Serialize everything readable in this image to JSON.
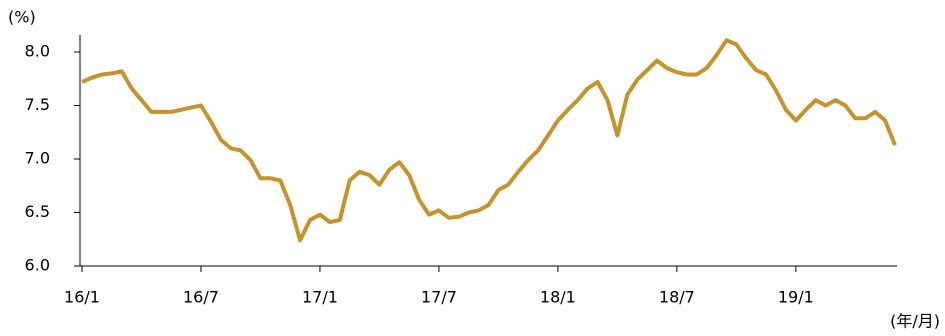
{
  "chart_data": {
    "type": "line",
    "y_axis_label": "(%)",
    "x_axis_label": "(年/月)",
    "categories": [
      "16/1",
      null,
      null,
      null,
      null,
      null,
      null,
      null,
      null,
      null,
      null,
      null,
      "16/7",
      null,
      null,
      null,
      null,
      null,
      null,
      null,
      null,
      null,
      null,
      null,
      "17/1",
      null,
      null,
      null,
      null,
      null,
      null,
      null,
      null,
      null,
      null,
      null,
      "17/7",
      null,
      null,
      null,
      null,
      null,
      null,
      null,
      null,
      null,
      null,
      null,
      "18/1",
      null,
      null,
      null,
      null,
      null,
      null,
      null,
      null,
      null,
      null,
      null,
      "18/7",
      null,
      null,
      null,
      null,
      null,
      null,
      null,
      null,
      null,
      null,
      null,
      "19/1",
      null,
      null,
      null,
      null,
      null,
      null,
      null,
      null,
      null,
      null
    ],
    "series": [
      {
        "color": "#c8922a",
        "values": [
          7.72,
          7.76,
          7.79,
          7.8,
          7.82,
          7.66,
          7.55,
          7.44,
          7.44,
          7.44,
          7.46,
          7.48,
          7.5,
          7.35,
          7.18,
          7.1,
          7.08,
          6.99,
          6.82,
          6.82,
          6.8,
          6.57,
          6.24,
          6.43,
          6.48,
          6.41,
          6.43,
          6.8,
          6.88,
          6.85,
          6.76,
          6.9,
          6.97,
          6.85,
          6.62,
          6.48,
          6.52,
          6.45,
          6.46,
          6.5,
          6.52,
          6.57,
          6.71,
          6.76,
          6.88,
          6.99,
          7.08,
          7.22,
          7.36,
          7.46,
          7.55,
          7.66,
          7.72,
          7.55,
          7.22,
          7.6,
          7.74,
          7.83,
          7.92,
          7.85,
          7.81,
          7.79,
          7.79,
          7.85,
          7.97,
          8.11,
          8.07,
          7.94,
          7.83,
          7.79,
          7.64,
          7.46,
          7.36,
          7.46,
          7.55,
          7.5,
          7.55,
          7.5,
          7.38,
          7.38,
          7.44,
          7.36,
          7.13
        ]
      }
    ],
    "ylim": [
      6,
      8
    ],
    "yticks": [
      {
        "value": 6,
        "label": "6.0"
      },
      6.5,
      {
        "value": 7,
        "label": "7.0"
      },
      7.5,
      {
        "value": 8,
        "label": "8.0"
      }
    ]
  }
}
